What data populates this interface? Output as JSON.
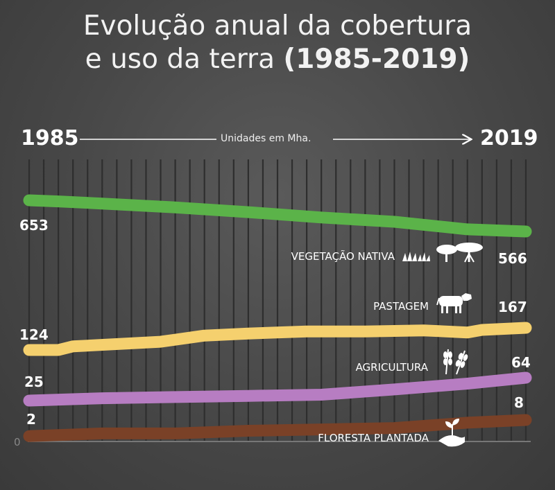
{
  "title_line1": "Evolução anual da cobertura",
  "title_line2": "e uso da terra",
  "title_years": "(1985-2019)",
  "year_start": "1985",
  "year_end": "2019",
  "units": "Unidades em Mha.",
  "zero_tick": "0",
  "chart_data": {
    "type": "line",
    "title": "Evolução anual da cobertura e uso da terra (1985-2019)",
    "xlim": [
      1985,
      2019
    ],
    "units": "Mha",
    "grid": true,
    "series": [
      {
        "name": "VEGETAÇÃO NATIVA",
        "color": "#5bb349",
        "icon": "vegetation-icon",
        "start_label": "653",
        "end_label": "566",
        "points": [
          [
            1985,
            653
          ],
          [
            1987,
            650
          ],
          [
            1990,
            644
          ],
          [
            1995,
            633
          ],
          [
            2000,
            620
          ],
          [
            2005,
            605
          ],
          [
            2010,
            593
          ],
          [
            2015,
            572
          ],
          [
            2019,
            566
          ]
        ]
      },
      {
        "name": "PASTAGEM",
        "color": "#f5d06e",
        "icon": "cow-icon",
        "start_label": "124",
        "end_label": "167",
        "points": [
          [
            1985,
            124
          ],
          [
            1987,
            124
          ],
          [
            1988,
            131
          ],
          [
            1994,
            140
          ],
          [
            1997,
            152
          ],
          [
            2000,
            156
          ],
          [
            2004,
            160
          ],
          [
            2008,
            160
          ],
          [
            2012,
            162
          ],
          [
            2015,
            158
          ],
          [
            2016,
            163
          ],
          [
            2019,
            167
          ]
        ]
      },
      {
        "name": "AGRICULTURA",
        "color": "#b77dc2",
        "icon": "wheat-icon",
        "start_label": "25",
        "end_label": "64",
        "points": [
          [
            1985,
            25
          ],
          [
            1990,
            29
          ],
          [
            1995,
            31
          ],
          [
            2000,
            33
          ],
          [
            2005,
            35
          ],
          [
            2010,
            44
          ],
          [
            2015,
            54
          ],
          [
            2019,
            64
          ]
        ]
      },
      {
        "name": "FLORESTA PLANTADA",
        "color": "#7a4127",
        "icon": "seedling-hand-icon",
        "start_label": "2",
        "end_label": "8",
        "points": [
          [
            1985,
            2
          ],
          [
            1990,
            3
          ],
          [
            1995,
            3
          ],
          [
            2000,
            4
          ],
          [
            2005,
            4.5
          ],
          [
            2010,
            5
          ],
          [
            2015,
            7
          ],
          [
            2019,
            8
          ]
        ]
      }
    ]
  }
}
